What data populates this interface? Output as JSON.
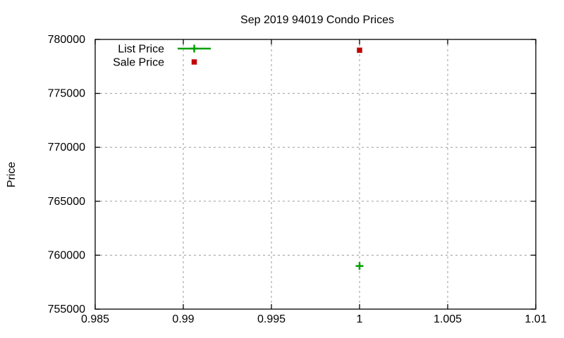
{
  "chart_data": {
    "type": "scatter",
    "title": "Sep 2019 94019 Condo Prices",
    "xlabel": "",
    "ylabel": "Price",
    "xlim": [
      0.985,
      1.01
    ],
    "ylim": [
      755000,
      780000
    ],
    "grid": true,
    "legend_position": "top-left-inside",
    "xticks": {
      "values": [
        0.985,
        0.99,
        0.995,
        1,
        1.005,
        1.01
      ],
      "labels": [
        "0.985",
        "0.99",
        "0.995",
        "1",
        "1.005",
        "1.01"
      ]
    },
    "yticks": {
      "values": [
        755000,
        760000,
        765000,
        770000,
        775000,
        780000
      ],
      "labels": [
        "755000",
        "760000",
        "765000",
        "770000",
        "775000",
        "780000"
      ]
    },
    "series": [
      {
        "name": "List Price",
        "style": "linespoints",
        "marker": "plus",
        "color": "#00a000",
        "points": [
          {
            "x": 1,
            "y": 759000
          }
        ]
      },
      {
        "name": "Sale Price",
        "style": "points",
        "marker": "square-filled",
        "color": "#c00000",
        "points": [
          {
            "x": 1,
            "y": 779000
          }
        ]
      }
    ],
    "colors": {
      "axis": "#000000",
      "grid": "#9a9a9a",
      "background": "#ffffff"
    }
  }
}
